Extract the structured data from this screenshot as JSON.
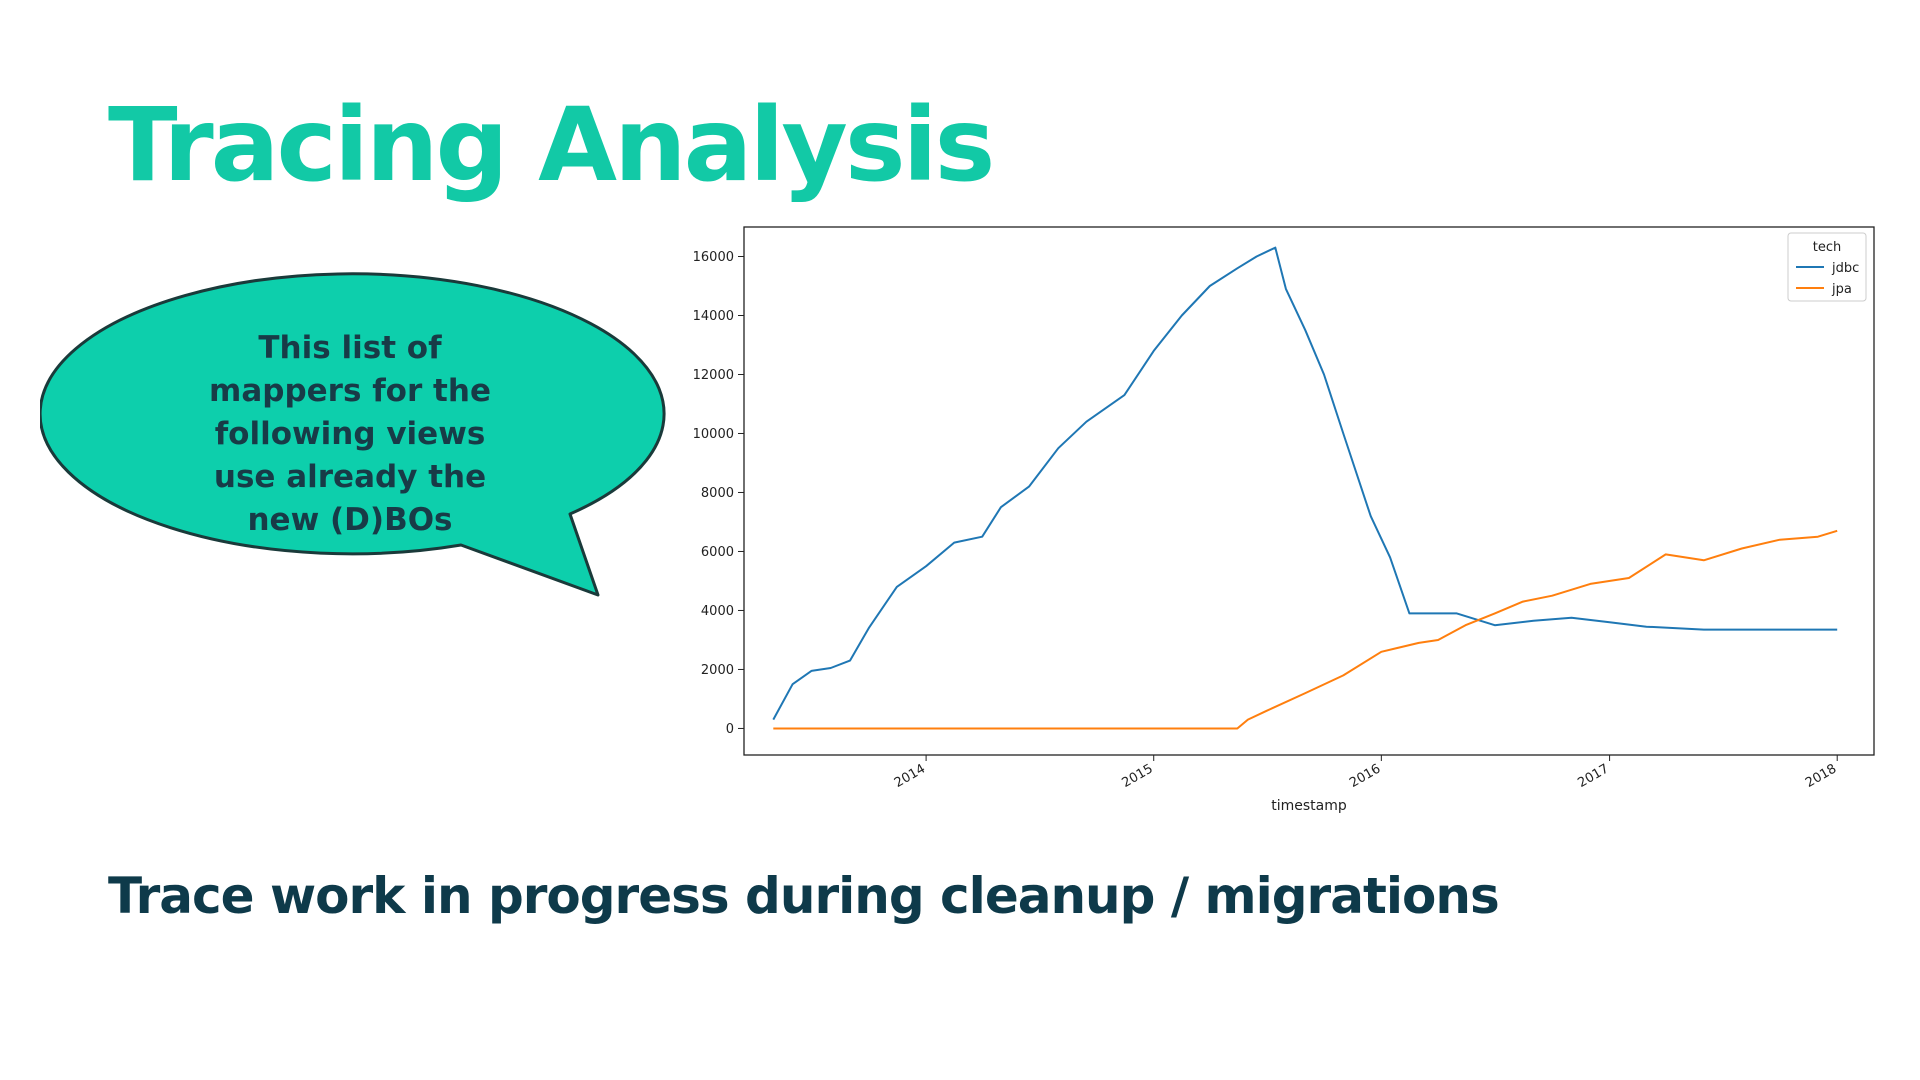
{
  "slide": {
    "title": "Tracing Analysis",
    "bubble_text": "This list of mappers for the following views use already the new (D)BOs",
    "subtitle": "Trace work in progress during cleanup / migrations"
  },
  "colors": {
    "title": "#12c9a6",
    "bubble_fill": "#0dcfac",
    "bubble_stroke": "#1a3a3a",
    "text_dark": "#0e3a4a"
  },
  "chart_data": {
    "type": "line",
    "xlabel": "timestamp",
    "ylabel": "",
    "xlim": [
      "2013-03-15",
      "2018-03-01"
    ],
    "ylim": [
      -900,
      17000
    ],
    "x_ticks": [
      "2014",
      "2015",
      "2016",
      "2017",
      "2018"
    ],
    "y_ticks": [
      0,
      2000,
      4000,
      6000,
      8000,
      10000,
      12000,
      14000,
      16000
    ],
    "grid": false,
    "legend": {
      "title": "tech",
      "position": "top-right"
    },
    "series": [
      {
        "name": "jdbc",
        "color": "#1f77b4",
        "points": [
          [
            "2013-05-01",
            300
          ],
          [
            "2013-06-01",
            1500
          ],
          [
            "2013-07-01",
            1950
          ],
          [
            "2013-08-01",
            2050
          ],
          [
            "2013-09-01",
            2300
          ],
          [
            "2013-10-01",
            3400
          ],
          [
            "2013-11-15",
            4800
          ],
          [
            "2014-01-01",
            5500
          ],
          [
            "2014-02-15",
            6300
          ],
          [
            "2014-04-01",
            6500
          ],
          [
            "2014-05-01",
            7500
          ],
          [
            "2014-06-15",
            8200
          ],
          [
            "2014-08-01",
            9500
          ],
          [
            "2014-09-15",
            10400
          ],
          [
            "2014-11-15",
            11300
          ],
          [
            "2015-01-01",
            12800
          ],
          [
            "2015-02-15",
            14000
          ],
          [
            "2015-04-01",
            15000
          ],
          [
            "2015-05-15",
            15600
          ],
          [
            "2015-06-15",
            16000
          ],
          [
            "2015-07-15",
            16300
          ],
          [
            "2015-08-01",
            14900
          ],
          [
            "2015-09-01",
            13500
          ],
          [
            "2015-10-01",
            12000
          ],
          [
            "2015-11-01",
            10000
          ],
          [
            "2015-12-15",
            7200
          ],
          [
            "2016-01-15",
            5800
          ],
          [
            "2016-02-15",
            3900
          ],
          [
            "2016-05-01",
            3900
          ],
          [
            "2016-07-01",
            3500
          ],
          [
            "2016-09-01",
            3650
          ],
          [
            "2016-11-01",
            3750
          ],
          [
            "2017-01-01",
            3600
          ],
          [
            "2017-03-01",
            3450
          ],
          [
            "2017-06-01",
            3350
          ],
          [
            "2017-09-01",
            3350
          ],
          [
            "2018-01-01",
            3350
          ]
        ]
      },
      {
        "name": "jpa",
        "color": "#ff7f0e",
        "points": [
          [
            "2013-05-01",
            0
          ],
          [
            "2015-05-15",
            0
          ],
          [
            "2015-06-01",
            300
          ],
          [
            "2015-07-01",
            600
          ],
          [
            "2015-09-01",
            1200
          ],
          [
            "2015-11-01",
            1800
          ],
          [
            "2016-01-01",
            2600
          ],
          [
            "2016-03-01",
            2900
          ],
          [
            "2016-04-01",
            3000
          ],
          [
            "2016-05-15",
            3500
          ],
          [
            "2016-07-01",
            3900
          ],
          [
            "2016-08-15",
            4300
          ],
          [
            "2016-10-01",
            4500
          ],
          [
            "2016-12-01",
            4900
          ],
          [
            "2017-02-01",
            5100
          ],
          [
            "2017-04-01",
            5900
          ],
          [
            "2017-06-01",
            5700
          ],
          [
            "2017-08-01",
            6100
          ],
          [
            "2017-10-01",
            6400
          ],
          [
            "2017-12-01",
            6500
          ],
          [
            "2018-01-01",
            6700
          ]
        ]
      }
    ]
  }
}
